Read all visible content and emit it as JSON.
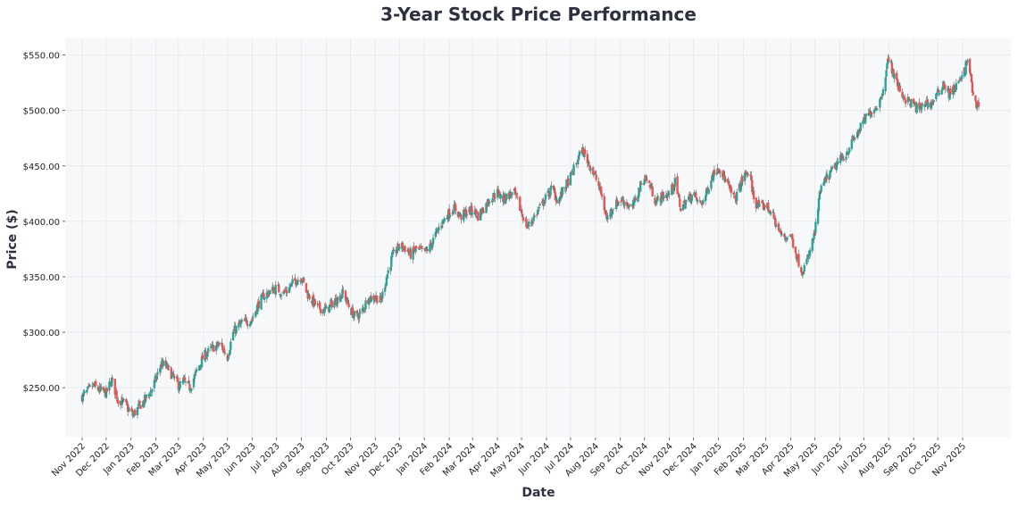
{
  "chart_data": {
    "type": "candlestick",
    "title": "3-Year Stock Price Performance",
    "xlabel": "Date",
    "ylabel": "Price ($)",
    "ylim": [
      205,
      565
    ],
    "yticks": [
      250,
      300,
      350,
      400,
      450,
      500,
      550
    ],
    "ytick_labels": [
      "$250.00",
      "$300.00",
      "$350.00",
      "$400.00",
      "$450.00",
      "$500.00",
      "$550.00"
    ],
    "xlim": [
      "2022-10-11",
      "2025-12-31"
    ],
    "xtick_labels": [
      {
        "label": "Nov 2022",
        "date": "2022-11-01"
      },
      {
        "label": "Dec 2022",
        "date": "2022-12-01"
      },
      {
        "label": "Jan 2023",
        "date": "2023-01-01"
      },
      {
        "label": "Feb 2023",
        "date": "2023-02-01"
      },
      {
        "label": "Mar 2023",
        "date": "2023-03-01"
      },
      {
        "label": "Apr 2023",
        "date": "2023-04-01"
      },
      {
        "label": "May 2023",
        "date": "2023-05-01"
      },
      {
        "label": "Jun 2023",
        "date": "2023-06-01"
      },
      {
        "label": "Jul 2023",
        "date": "2023-07-01"
      },
      {
        "label": "Aug 2023",
        "date": "2023-08-01"
      },
      {
        "label": "Sep 2023",
        "date": "2023-09-01"
      },
      {
        "label": "Oct 2023",
        "date": "2023-10-01"
      },
      {
        "label": "Nov 2023",
        "date": "2023-11-01"
      },
      {
        "label": "Dec 2023",
        "date": "2023-12-01"
      },
      {
        "label": "Jan 2024",
        "date": "2024-01-01"
      },
      {
        "label": "Feb 2024",
        "date": "2024-02-01"
      },
      {
        "label": "Mar 2024",
        "date": "2024-03-01"
      },
      {
        "label": "Apr 2024",
        "date": "2024-04-01"
      },
      {
        "label": "May 2024",
        "date": "2024-05-01"
      },
      {
        "label": "Jun 2024",
        "date": "2024-06-01"
      },
      {
        "label": "Jul 2024",
        "date": "2024-07-01"
      },
      {
        "label": "Aug 2024",
        "date": "2024-08-01"
      },
      {
        "label": "Sep 2024",
        "date": "2024-09-01"
      },
      {
        "label": "Oct 2024",
        "date": "2024-10-01"
      },
      {
        "label": "Nov 2024",
        "date": "2024-11-01"
      },
      {
        "label": "Dec 2024",
        "date": "2024-12-01"
      },
      {
        "label": "Jan 2025",
        "date": "2025-01-01"
      },
      {
        "label": "Feb 2025",
        "date": "2025-02-01"
      },
      {
        "label": "Mar 2025",
        "date": "2025-03-01"
      },
      {
        "label": "Apr 2025",
        "date": "2025-04-01"
      },
      {
        "label": "May 2025",
        "date": "2025-05-01"
      },
      {
        "label": "Jun 2025",
        "date": "2025-06-01"
      },
      {
        "label": "Jul 2025",
        "date": "2025-07-01"
      },
      {
        "label": "Aug 2025",
        "date": "2025-08-01"
      },
      {
        "label": "Sep 2025",
        "date": "2025-09-01"
      },
      {
        "label": "Oct 2025",
        "date": "2025-10-01"
      },
      {
        "label": "Nov 2025",
        "date": "2025-11-01"
      }
    ],
    "grid": true,
    "colors": {
      "up": "#26a69a",
      "down": "#ef5350",
      "plot_bg": "#f7f8fa",
      "grid": "#e6e8ec",
      "title": "#2e3140"
    },
    "close_trajectory": [
      {
        "date": "2022-11-01",
        "close": 242
      },
      {
        "date": "2022-11-08",
        "close": 247
      },
      {
        "date": "2022-11-15",
        "close": 252
      },
      {
        "date": "2022-11-22",
        "close": 248
      },
      {
        "date": "2022-12-01",
        "close": 245
      },
      {
        "date": "2022-12-08",
        "close": 257
      },
      {
        "date": "2022-12-15",
        "close": 240
      },
      {
        "date": "2022-12-23",
        "close": 236
      },
      {
        "date": "2023-01-03",
        "close": 225
      },
      {
        "date": "2023-01-10",
        "close": 232
      },
      {
        "date": "2023-01-17",
        "close": 238
      },
      {
        "date": "2023-01-25",
        "close": 246
      },
      {
        "date": "2023-02-01",
        "close": 258
      },
      {
        "date": "2023-02-08",
        "close": 272
      },
      {
        "date": "2023-02-15",
        "close": 268
      },
      {
        "date": "2023-02-22",
        "close": 260
      },
      {
        "date": "2023-03-01",
        "close": 252
      },
      {
        "date": "2023-03-08",
        "close": 255
      },
      {
        "date": "2023-03-15",
        "close": 250
      },
      {
        "date": "2023-03-22",
        "close": 262
      },
      {
        "date": "2023-04-01",
        "close": 278
      },
      {
        "date": "2023-04-08",
        "close": 283
      },
      {
        "date": "2023-04-15",
        "close": 287
      },
      {
        "date": "2023-04-22",
        "close": 289
      },
      {
        "date": "2023-05-01",
        "close": 278
      },
      {
        "date": "2023-05-08",
        "close": 300
      },
      {
        "date": "2023-05-15",
        "close": 306
      },
      {
        "date": "2023-05-22",
        "close": 309
      },
      {
        "date": "2023-06-01",
        "close": 312
      },
      {
        "date": "2023-06-08",
        "close": 325
      },
      {
        "date": "2023-06-15",
        "close": 333
      },
      {
        "date": "2023-06-22",
        "close": 336
      },
      {
        "date": "2023-07-01",
        "close": 340
      },
      {
        "date": "2023-07-08",
        "close": 335
      },
      {
        "date": "2023-07-15",
        "close": 338
      },
      {
        "date": "2023-07-22",
        "close": 345
      },
      {
        "date": "2023-08-01",
        "close": 350
      },
      {
        "date": "2023-08-08",
        "close": 335
      },
      {
        "date": "2023-08-15",
        "close": 328
      },
      {
        "date": "2023-08-22",
        "close": 322
      },
      {
        "date": "2023-09-01",
        "close": 320
      },
      {
        "date": "2023-09-08",
        "close": 326
      },
      {
        "date": "2023-09-15",
        "close": 330
      },
      {
        "date": "2023-09-22",
        "close": 336
      },
      {
        "date": "2023-10-01",
        "close": 320
      },
      {
        "date": "2023-10-08",
        "close": 313
      },
      {
        "date": "2023-10-15",
        "close": 318
      },
      {
        "date": "2023-10-22",
        "close": 330
      },
      {
        "date": "2023-11-01",
        "close": 332
      },
      {
        "date": "2023-11-08",
        "close": 328
      },
      {
        "date": "2023-11-15",
        "close": 350
      },
      {
        "date": "2023-11-22",
        "close": 368
      },
      {
        "date": "2023-12-01",
        "close": 378
      },
      {
        "date": "2023-12-08",
        "close": 376
      },
      {
        "date": "2023-12-15",
        "close": 370
      },
      {
        "date": "2023-12-22",
        "close": 375
      },
      {
        "date": "2024-01-01",
        "close": 372
      },
      {
        "date": "2024-01-08",
        "close": 377
      },
      {
        "date": "2024-01-15",
        "close": 388
      },
      {
        "date": "2024-01-22",
        "close": 398
      },
      {
        "date": "2024-02-01",
        "close": 408
      },
      {
        "date": "2024-02-08",
        "close": 412
      },
      {
        "date": "2024-02-15",
        "close": 404
      },
      {
        "date": "2024-02-22",
        "close": 408
      },
      {
        "date": "2024-03-01",
        "close": 410
      },
      {
        "date": "2024-03-08",
        "close": 405
      },
      {
        "date": "2024-03-15",
        "close": 412
      },
      {
        "date": "2024-03-22",
        "close": 420
      },
      {
        "date": "2024-04-01",
        "close": 426
      },
      {
        "date": "2024-04-08",
        "close": 420
      },
      {
        "date": "2024-04-15",
        "close": 424
      },
      {
        "date": "2024-04-22",
        "close": 425
      },
      {
        "date": "2024-05-01",
        "close": 408
      },
      {
        "date": "2024-05-08",
        "close": 395
      },
      {
        "date": "2024-05-15",
        "close": 402
      },
      {
        "date": "2024-05-22",
        "close": 410
      },
      {
        "date": "2024-06-01",
        "close": 422
      },
      {
        "date": "2024-06-08",
        "close": 430
      },
      {
        "date": "2024-06-15",
        "close": 418
      },
      {
        "date": "2024-06-22",
        "close": 428
      },
      {
        "date": "2024-07-01",
        "close": 440
      },
      {
        "date": "2024-07-08",
        "close": 452
      },
      {
        "date": "2024-07-15",
        "close": 465
      },
      {
        "date": "2024-07-22",
        "close": 455
      },
      {
        "date": "2024-08-01",
        "close": 440
      },
      {
        "date": "2024-08-08",
        "close": 425
      },
      {
        "date": "2024-08-15",
        "close": 402
      },
      {
        "date": "2024-08-22",
        "close": 412
      },
      {
        "date": "2024-09-01",
        "close": 420
      },
      {
        "date": "2024-09-08",
        "close": 417
      },
      {
        "date": "2024-09-15",
        "close": 410
      },
      {
        "date": "2024-09-22",
        "close": 425
      },
      {
        "date": "2024-10-01",
        "close": 440
      },
      {
        "date": "2024-10-08",
        "close": 432
      },
      {
        "date": "2024-10-15",
        "close": 418
      },
      {
        "date": "2024-10-22",
        "close": 422
      },
      {
        "date": "2024-11-01",
        "close": 425
      },
      {
        "date": "2024-11-08",
        "close": 435
      },
      {
        "date": "2024-11-15",
        "close": 412
      },
      {
        "date": "2024-11-22",
        "close": 418
      },
      {
        "date": "2024-12-01",
        "close": 425
      },
      {
        "date": "2024-12-08",
        "close": 415
      },
      {
        "date": "2024-12-15",
        "close": 420
      },
      {
        "date": "2024-12-22",
        "close": 438
      },
      {
        "date": "2025-01-01",
        "close": 450
      },
      {
        "date": "2025-01-08",
        "close": 440
      },
      {
        "date": "2025-01-15",
        "close": 428
      },
      {
        "date": "2025-01-22",
        "close": 420
      },
      {
        "date": "2025-02-01",
        "close": 440
      },
      {
        "date": "2025-02-08",
        "close": 445
      },
      {
        "date": "2025-02-15",
        "close": 418
      },
      {
        "date": "2025-02-22",
        "close": 412
      },
      {
        "date": "2025-03-01",
        "close": 415
      },
      {
        "date": "2025-03-08",
        "close": 408
      },
      {
        "date": "2025-03-15",
        "close": 395
      },
      {
        "date": "2025-03-22",
        "close": 385
      },
      {
        "date": "2025-04-01",
        "close": 388
      },
      {
        "date": "2025-04-08",
        "close": 370
      },
      {
        "date": "2025-04-15",
        "close": 355
      },
      {
        "date": "2025-04-22",
        "close": 365
      },
      {
        "date": "2025-05-01",
        "close": 390
      },
      {
        "date": "2025-05-08",
        "close": 428
      },
      {
        "date": "2025-05-15",
        "close": 438
      },
      {
        "date": "2025-05-22",
        "close": 445
      },
      {
        "date": "2025-06-01",
        "close": 455
      },
      {
        "date": "2025-06-08",
        "close": 460
      },
      {
        "date": "2025-06-15",
        "close": 470
      },
      {
        "date": "2025-06-22",
        "close": 478
      },
      {
        "date": "2025-07-01",
        "close": 490
      },
      {
        "date": "2025-07-08",
        "close": 498
      },
      {
        "date": "2025-07-15",
        "close": 502
      },
      {
        "date": "2025-07-22",
        "close": 510
      },
      {
        "date": "2025-08-01",
        "close": 548
      },
      {
        "date": "2025-08-08",
        "close": 530
      },
      {
        "date": "2025-08-15",
        "close": 518
      },
      {
        "date": "2025-08-22",
        "close": 510
      },
      {
        "date": "2025-09-01",
        "close": 505
      },
      {
        "date": "2025-09-08",
        "close": 500
      },
      {
        "date": "2025-09-15",
        "close": 508
      },
      {
        "date": "2025-09-22",
        "close": 505
      },
      {
        "date": "2025-10-01",
        "close": 515
      },
      {
        "date": "2025-10-08",
        "close": 525
      },
      {
        "date": "2025-10-15",
        "close": 515
      },
      {
        "date": "2025-10-22",
        "close": 520
      },
      {
        "date": "2025-11-01",
        "close": 530
      },
      {
        "date": "2025-11-08",
        "close": 548
      },
      {
        "date": "2025-11-15",
        "close": 505
      },
      {
        "date": "2025-11-22",
        "close": 505
      }
    ]
  }
}
